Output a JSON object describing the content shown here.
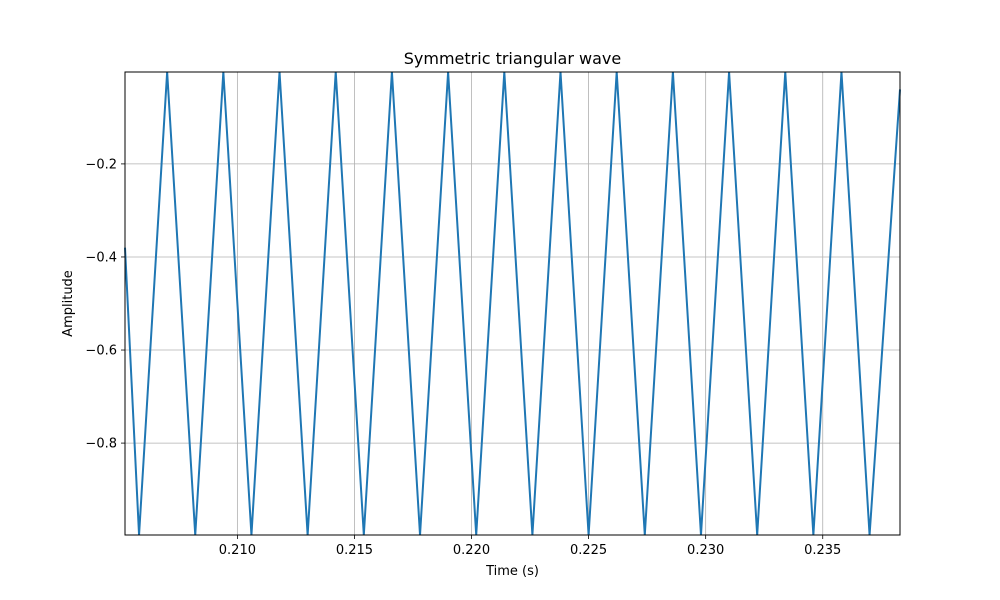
{
  "chart_data": {
    "type": "line",
    "title": "Symmetric triangular wave",
    "xlabel": "Time (s)",
    "ylabel": "Amplitude",
    "xlim": [
      0.2052,
      0.2383
    ],
    "ylim": [
      -0.9975,
      -0.0025
    ],
    "x_ticks": [
      0.21,
      0.215,
      0.22,
      0.225,
      0.23,
      0.235
    ],
    "x_tick_labels": [
      "0.210",
      "0.215",
      "0.220",
      "0.225",
      "0.230",
      "0.235"
    ],
    "y_ticks": [
      -0.2,
      -0.4,
      -0.6,
      -0.8
    ],
    "y_tick_labels": [
      "−0.2",
      "−0.4",
      "−0.6",
      "−0.8"
    ],
    "grid": true,
    "line_color": "#1f77b4",
    "series": [
      {
        "x": [
          0.2052,
          0.2058,
          0.207,
          0.2082,
          0.2094,
          0.2106,
          0.2118,
          0.213,
          0.2142,
          0.2154,
          0.2166,
          0.2178,
          0.219,
          0.2202,
          0.2214,
          0.2226,
          0.2238,
          0.225,
          0.2262,
          0.2274,
          0.2286,
          0.2298,
          0.231,
          0.2322,
          0.2334,
          0.2346,
          0.2358,
          0.237,
          0.2383
        ],
        "y": [
          -0.38,
          -0.9975,
          -0.0025,
          -0.9975,
          -0.0025,
          -0.9975,
          -0.0025,
          -0.9975,
          -0.0025,
          -0.9975,
          -0.0025,
          -0.9975,
          -0.0025,
          -0.9975,
          -0.0025,
          -0.9975,
          -0.0025,
          -0.9975,
          -0.0025,
          -0.9975,
          -0.0025,
          -0.9975,
          -0.0025,
          -0.9975,
          -0.0025,
          -0.9975,
          -0.0025,
          -0.9975,
          -0.04
        ]
      }
    ]
  }
}
